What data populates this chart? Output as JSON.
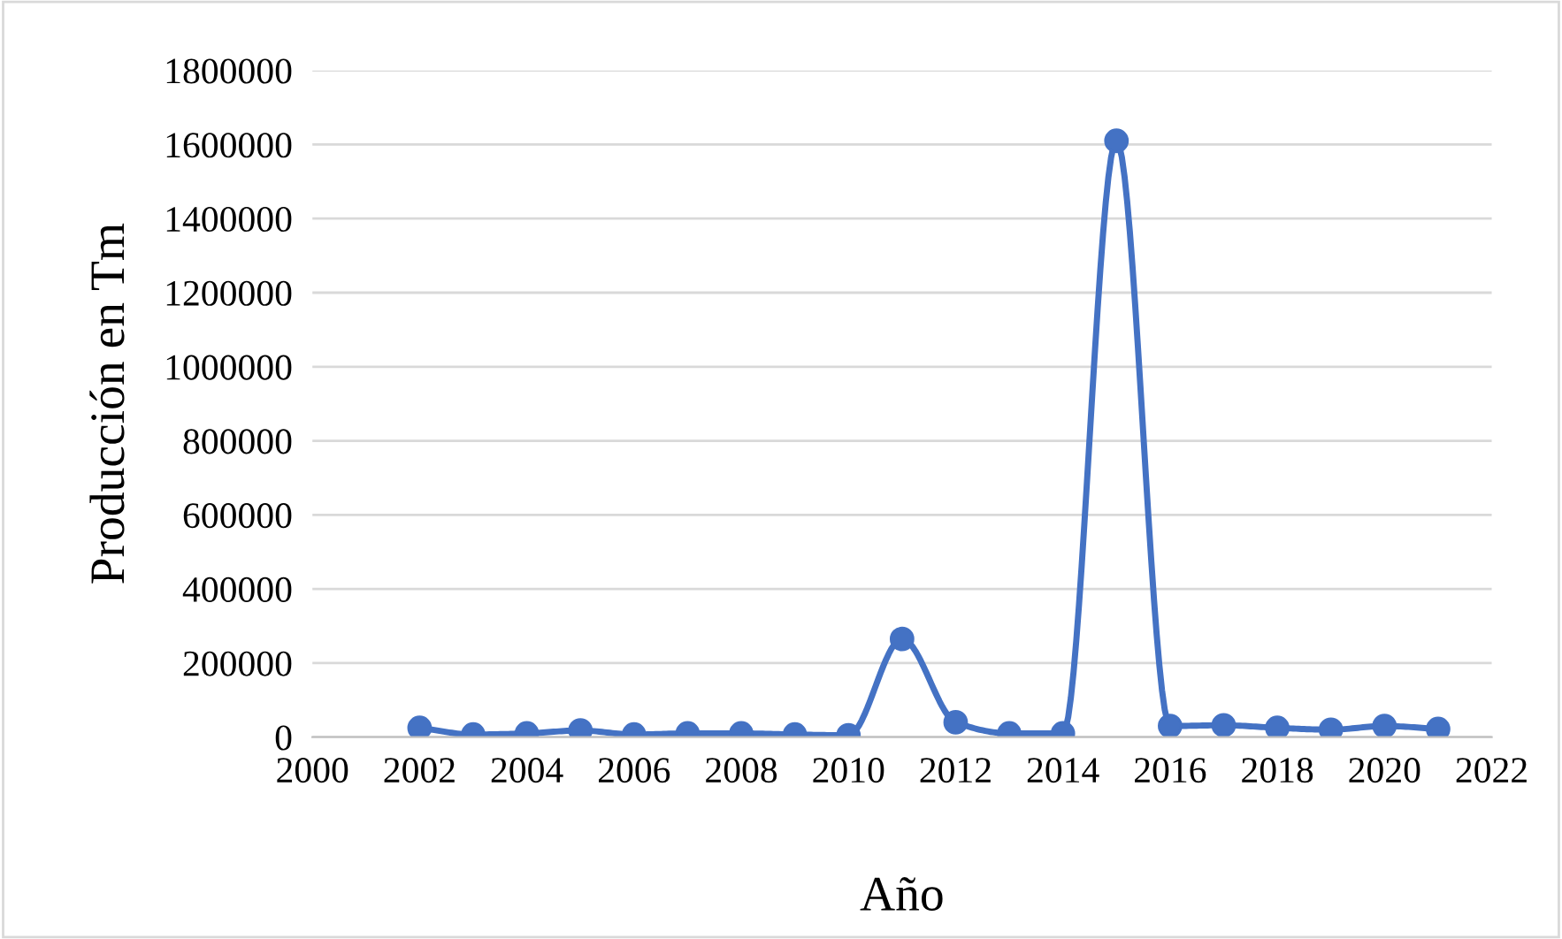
{
  "chart_data": {
    "type": "line",
    "xlabel": "Año",
    "ylabel": "Producción en Tm",
    "x": [
      2002,
      2003,
      2004,
      2005,
      2006,
      2007,
      2008,
      2009,
      2010,
      2011,
      2012,
      2013,
      2014,
      2015,
      2016,
      2017,
      2018,
      2019,
      2020,
      2021
    ],
    "series": [
      {
        "color": "#4472c4",
        "values": [
          25000,
          7000,
          10000,
          18000,
          7000,
          10000,
          10000,
          7000,
          5000,
          265000,
          40000,
          10000,
          10000,
          1610000,
          30000,
          32000,
          25000,
          20000,
          30000,
          22000
        ]
      }
    ],
    "xlim": [
      2000,
      2022
    ],
    "xticks": [
      2000,
      2002,
      2004,
      2006,
      2008,
      2010,
      2012,
      2014,
      2016,
      2018,
      2020,
      2022
    ],
    "ylim": [
      0,
      1800000
    ],
    "yticks": [
      0,
      200000,
      400000,
      600000,
      800000,
      1000000,
      1200000,
      1400000,
      1600000,
      1800000
    ],
    "grid": "y",
    "marker": "circle",
    "line_style": "solid",
    "legend": false
  }
}
